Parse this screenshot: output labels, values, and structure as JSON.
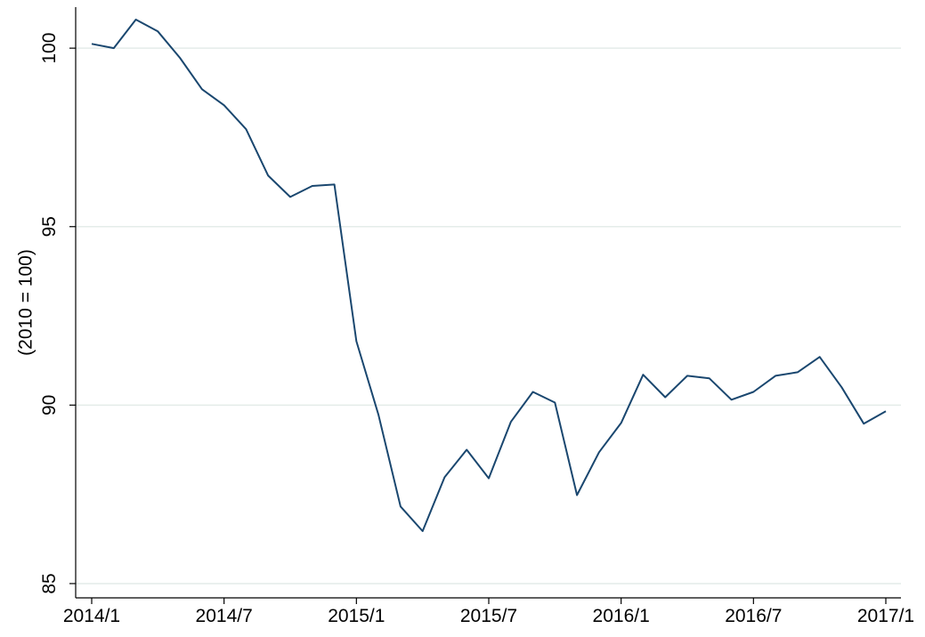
{
  "chart_data": {
    "type": "line",
    "y_label": "(2010 = 100)",
    "categories": [
      "2014/1",
      null,
      null,
      null,
      null,
      null,
      "2014/7",
      null,
      null,
      null,
      null,
      null,
      "2015/1",
      null,
      null,
      null,
      null,
      null,
      "2015/7",
      null,
      null,
      null,
      null,
      null,
      "2016/1",
      null,
      null,
      null,
      null,
      null,
      "2016/7",
      null,
      null,
      null,
      null,
      null,
      "2017/1"
    ],
    "series": [
      {
        "color": "#1a476f",
        "values": [
          100.12,
          100.0,
          100.8,
          100.47,
          99.73,
          98.85,
          98.4,
          97.73,
          96.43,
          95.83,
          96.14,
          96.18,
          91.79,
          89.73,
          87.16,
          86.47,
          87.98,
          88.75,
          87.95,
          89.53,
          90.37,
          90.07,
          87.48,
          88.68,
          89.5,
          90.85,
          90.22,
          90.82,
          90.75,
          90.15,
          90.37,
          90.82,
          90.92,
          91.35,
          90.5,
          89.48,
          89.83
        ]
      }
    ],
    "ylim": [
      84.6,
      101.15
    ],
    "yticks": [
      85,
      90,
      95,
      100
    ],
    "grid": true
  }
}
